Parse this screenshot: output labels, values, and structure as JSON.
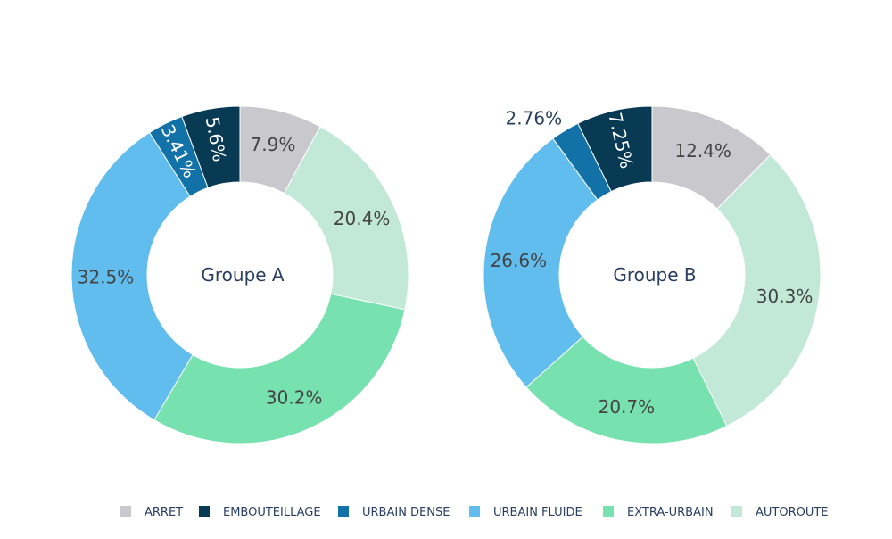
{
  "chart_data": [
    {
      "type": "pie",
      "hole": true,
      "center_label": "Groupe A",
      "slices": [
        {
          "name": "ARRET",
          "value": 7.9,
          "label": "7.9%"
        },
        {
          "name": "AUTOROUTE",
          "value": 20.4,
          "label": "20.4%"
        },
        {
          "name": "EXTRA-URBAIN",
          "value": 30.2,
          "label": "30.2%"
        },
        {
          "name": "URBAIN FLUIDE",
          "value": 32.5,
          "label": "32.5%"
        },
        {
          "name": "URBAIN DENSE",
          "value": 3.41,
          "label": "3.41%"
        },
        {
          "name": "EMBOUTEILLAGE",
          "value": 5.6,
          "label": "5.6%"
        }
      ]
    },
    {
      "type": "pie",
      "hole": true,
      "center_label": "Groupe B",
      "slices": [
        {
          "name": "ARRET",
          "value": 12.4,
          "label": "12.4%"
        },
        {
          "name": "AUTOROUTE",
          "value": 30.3,
          "label": "30.3%"
        },
        {
          "name": "EXTRA-URBAIN",
          "value": 20.7,
          "label": "20.7%"
        },
        {
          "name": "URBAIN FLUIDE",
          "value": 26.6,
          "label": "26.6%"
        },
        {
          "name": "URBAIN DENSE",
          "value": 2.76,
          "label": "2.76%"
        },
        {
          "name": "EMBOUTEILLAGE",
          "value": 7.25,
          "label": "7.25%"
        }
      ]
    }
  ],
  "legend": {
    "placement": "bottom",
    "items": [
      "ARRET",
      "EMBOUTEILLAGE",
      "URBAIN DENSE",
      "URBAIN FLUIDE",
      "EXTRA-URBAIN",
      "AUTOROUTE"
    ]
  },
  "colors": {
    "ARRET": "#c8c8cd",
    "EMBOUTEILLAGE": "#083a53",
    "URBAIN DENSE": "#1272a7",
    "URBAIN FLUIDE": "#61bdee",
    "EXTRA-URBAIN": "#77e2b0",
    "AUTOROUTE": "#c2e9d7"
  }
}
